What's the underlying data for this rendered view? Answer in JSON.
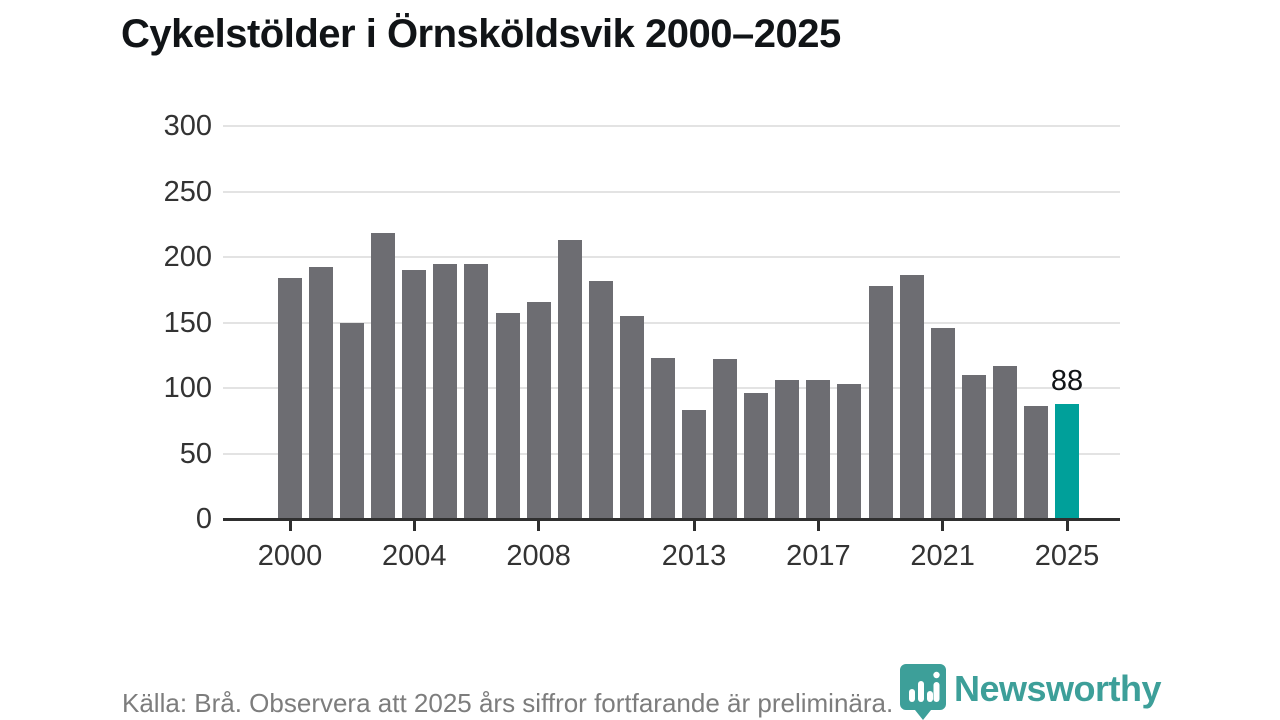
{
  "title": "Cykelstölder i Örnsköldsvik 2000–2025",
  "footer": {
    "source_note": "Källa: Brå. Observera att 2025 års siffror fortfarande är preliminära."
  },
  "branding": {
    "logo_text": "Newsworthy",
    "logo_icon": "newsworthy-pin-barchart-icon"
  },
  "colors": {
    "bar": "#6d6d72",
    "accent": "#00a09a",
    "grid": "#e3e3e3",
    "axis": "#2f2f2f",
    "logo": "#3d9f99",
    "footer_text": "#7d7d7d"
  },
  "chart_data": {
    "type": "bar",
    "title": "Cykelstölder i Örnsköldsvik 2000–2025",
    "x": [
      2000,
      2001,
      2002,
      2003,
      2004,
      2005,
      2006,
      2007,
      2008,
      2009,
      2010,
      2011,
      2012,
      2013,
      2014,
      2015,
      2016,
      2017,
      2018,
      2019,
      2020,
      2021,
      2022,
      2023,
      2024,
      2025
    ],
    "values": [
      184,
      192,
      150,
      218,
      190,
      195,
      195,
      157,
      166,
      213,
      182,
      155,
      123,
      83,
      122,
      96,
      106,
      106,
      103,
      178,
      186,
      146,
      110,
      117,
      86,
      88
    ],
    "highlight_index": 25,
    "data_label": {
      "index": 25,
      "text": "88"
    },
    "xlabel": "",
    "ylabel": "",
    "ylim": [
      0,
      300
    ],
    "yticks": [
      "0",
      "50",
      "100",
      "150",
      "200",
      "250",
      "300"
    ],
    "xtick_years": [
      2000,
      2004,
      2008,
      2013,
      2017,
      2021,
      2025
    ],
    "grid": "horizontal",
    "legend": "none"
  }
}
